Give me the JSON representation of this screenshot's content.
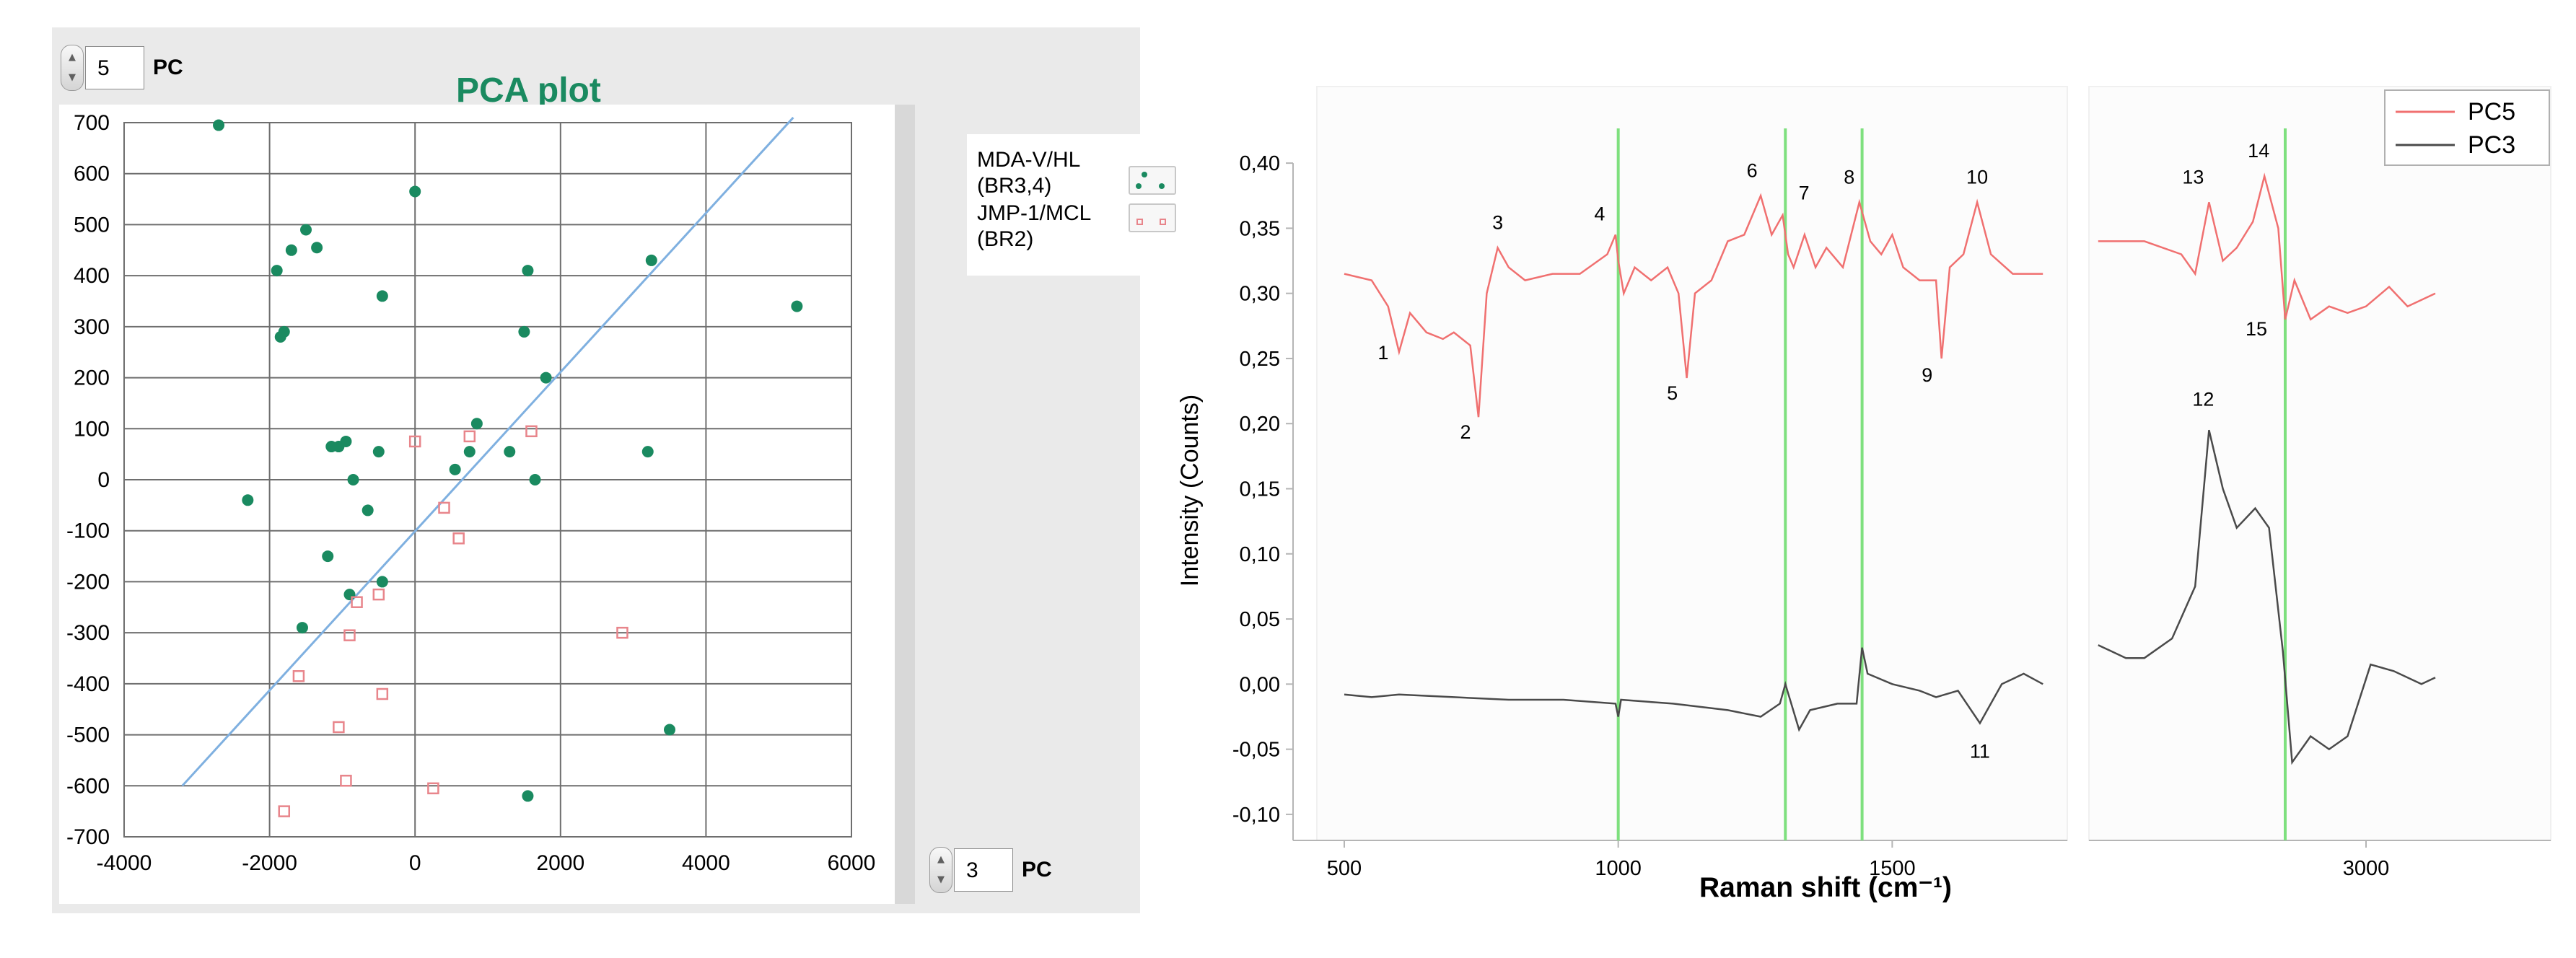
{
  "left_panel": {
    "pc_y_spinner": {
      "value": "5",
      "unit": "PC"
    },
    "pc_x_spinner": {
      "value": "3",
      "unit": "PC"
    },
    "legend": [
      {
        "label_line1": "MDA-V/HL",
        "label_line2": "(BR3,4)"
      },
      {
        "label_line1": "JMP-1/MCL",
        "label_line2": "(BR2)"
      }
    ]
  },
  "colors": {
    "series1": "#1a8a60",
    "series2": "#e8858b",
    "regression": "#7fb0e0",
    "pc5": "#f07070",
    "pc3": "#4a4a4a",
    "markers": "#7ee07e"
  },
  "chart_data": [
    {
      "type": "scatter",
      "title": "PCA plot",
      "xlim": [
        -4000,
        6000
      ],
      "ylim": [
        -700,
        700
      ],
      "xticks": [
        "-4000",
        "-2000",
        "0",
        "2000",
        "4000",
        "6000"
      ],
      "yticks": [
        "700",
        "600",
        "500",
        "400",
        "300",
        "200",
        "100",
        "0",
        "-100",
        "-200",
        "-300",
        "-400",
        "-500",
        "-600",
        "-700"
      ],
      "grid": true,
      "legend_position": "right",
      "series": [
        {
          "name": "MDA-V/HL (BR3,4)",
          "marker": "filled-circle",
          "points": [
            [
              -2700,
              695
            ],
            [
              -1900,
              410
            ],
            [
              -1850,
              280
            ],
            [
              -1800,
              290
            ],
            [
              -1700,
              450
            ],
            [
              -1500,
              490
            ],
            [
              -1350,
              455
            ],
            [
              -450,
              360
            ],
            [
              0,
              565
            ],
            [
              1550,
              410
            ],
            [
              3250,
              430
            ],
            [
              5250,
              340
            ],
            [
              1500,
              290
            ],
            [
              1800,
              200
            ],
            [
              -2300,
              -40
            ],
            [
              -1150,
              65
            ],
            [
              -1050,
              65
            ],
            [
              -950,
              75
            ],
            [
              -850,
              0
            ],
            [
              -650,
              -60
            ],
            [
              -500,
              55
            ],
            [
              550,
              20
            ],
            [
              750,
              55
            ],
            [
              850,
              110
            ],
            [
              1300,
              55
            ],
            [
              1650,
              0
            ],
            [
              3200,
              55
            ],
            [
              -1200,
              -150
            ],
            [
              -900,
              -225
            ],
            [
              -450,
              -200
            ],
            [
              -1550,
              -290
            ],
            [
              3500,
              -490
            ],
            [
              1550,
              -620
            ]
          ]
        },
        {
          "name": "JMP-1/MCL (BR2)",
          "marker": "hollow-square",
          "points": [
            [
              0,
              75
            ],
            [
              750,
              85
            ],
            [
              1600,
              95
            ],
            [
              400,
              -55
            ],
            [
              600,
              -115
            ],
            [
              -500,
              -225
            ],
            [
              -800,
              -240
            ],
            [
              -900,
              -305
            ],
            [
              2850,
              -300
            ],
            [
              -1600,
              -385
            ],
            [
              -450,
              -420
            ],
            [
              -1050,
              -485
            ],
            [
              -950,
              -590
            ],
            [
              250,
              -605
            ],
            [
              -1800,
              -650
            ]
          ]
        }
      ],
      "regression_line": {
        "x": [
          -3200,
          5200
        ],
        "y": [
          -600,
          710
        ]
      }
    },
    {
      "type": "line",
      "xlabel": "Raman shift (cm⁻¹)",
      "ylabel": "Intensity (Counts)",
      "ylim": [
        -0.12,
        0.42
      ],
      "yticks": [
        "0,40",
        "0,35",
        "0,30",
        "0,25",
        "0,20",
        "0,15",
        "0,10",
        "0,05",
        "0,00",
        "-0,05",
        "-0,10"
      ],
      "left_xlim": [
        450,
        1780
      ],
      "left_xticks": [
        "500",
        "1000",
        "1500"
      ],
      "right_xlim": [
        2400,
        3400
      ],
      "right_xticks": [
        "3000"
      ],
      "legend_position": "top-right",
      "vertical_markers": [
        1000,
        1305,
        1445,
        2825
      ],
      "series": [
        {
          "name": "PC5",
          "points": [
            [
              500,
              0.315
            ],
            [
              550,
              0.31
            ],
            [
              580,
              0.29
            ],
            [
              600,
              0.255
            ],
            [
              620,
              0.285
            ],
            [
              650,
              0.27
            ],
            [
              680,
              0.265
            ],
            [
              700,
              0.27
            ],
            [
              730,
              0.26
            ],
            [
              745,
              0.205
            ],
            [
              760,
              0.3
            ],
            [
              780,
              0.335
            ],
            [
              800,
              0.32
            ],
            [
              830,
              0.31
            ],
            [
              880,
              0.315
            ],
            [
              930,
              0.315
            ],
            [
              980,
              0.33
            ],
            [
              995,
              0.345
            ],
            [
              1000,
              0.325
            ],
            [
              1010,
              0.3
            ],
            [
              1030,
              0.32
            ],
            [
              1060,
              0.31
            ],
            [
              1090,
              0.32
            ],
            [
              1110,
              0.3
            ],
            [
              1125,
              0.235
            ],
            [
              1140,
              0.3
            ],
            [
              1170,
              0.31
            ],
            [
              1200,
              0.34
            ],
            [
              1230,
              0.345
            ],
            [
              1260,
              0.375
            ],
            [
              1280,
              0.345
            ],
            [
              1300,
              0.36
            ],
            [
              1310,
              0.33
            ],
            [
              1320,
              0.32
            ],
            [
              1340,
              0.345
            ],
            [
              1360,
              0.32
            ],
            [
              1380,
              0.335
            ],
            [
              1410,
              0.32
            ],
            [
              1440,
              0.37
            ],
            [
              1460,
              0.34
            ],
            [
              1480,
              0.33
            ],
            [
              1500,
              0.345
            ],
            [
              1520,
              0.32
            ],
            [
              1550,
              0.31
            ],
            [
              1580,
              0.31
            ],
            [
              1590,
              0.25
            ],
            [
              1605,
              0.32
            ],
            [
              1630,
              0.33
            ],
            [
              1655,
              0.37
            ],
            [
              1680,
              0.33
            ],
            [
              1720,
              0.315
            ],
            [
              1775,
              0.315
            ],
            [
              2420,
              0.34
            ],
            [
              2520,
              0.34
            ],
            [
              2600,
              0.33
            ],
            [
              2630,
              0.315
            ],
            [
              2660,
              0.37
            ],
            [
              2690,
              0.325
            ],
            [
              2720,
              0.335
            ],
            [
              2755,
              0.355
            ],
            [
              2780,
              0.39
            ],
            [
              2810,
              0.35
            ],
            [
              2825,
              0.28
            ],
            [
              2845,
              0.31
            ],
            [
              2880,
              0.28
            ],
            [
              2920,
              0.29
            ],
            [
              2960,
              0.285
            ],
            [
              3000,
              0.29
            ],
            [
              3050,
              0.305
            ],
            [
              3090,
              0.29
            ],
            [
              3120,
              0.295
            ],
            [
              3150,
              0.3
            ]
          ]
        },
        {
          "name": "PC3",
          "points": [
            [
              500,
              -0.008
            ],
            [
              550,
              -0.01
            ],
            [
              600,
              -0.008
            ],
            [
              700,
              -0.01
            ],
            [
              800,
              -0.012
            ],
            [
              900,
              -0.012
            ],
            [
              995,
              -0.015
            ],
            [
              1000,
              -0.025
            ],
            [
              1005,
              -0.012
            ],
            [
              1100,
              -0.015
            ],
            [
              1200,
              -0.02
            ],
            [
              1260,
              -0.025
            ],
            [
              1295,
              -0.015
            ],
            [
              1305,
              0.0
            ],
            [
              1330,
              -0.035
            ],
            [
              1350,
              -0.02
            ],
            [
              1400,
              -0.015
            ],
            [
              1435,
              -0.015
            ],
            [
              1445,
              0.028
            ],
            [
              1455,
              0.008
            ],
            [
              1500,
              0.0
            ],
            [
              1550,
              -0.005
            ],
            [
              1580,
              -0.01
            ],
            [
              1620,
              -0.005
            ],
            [
              1660,
              -0.03
            ],
            [
              1700,
              0.0
            ],
            [
              1740,
              0.008
            ],
            [
              1775,
              0.0
            ],
            [
              2420,
              0.03
            ],
            [
              2480,
              0.02
            ],
            [
              2520,
              0.02
            ],
            [
              2580,
              0.035
            ],
            [
              2630,
              0.075
            ],
            [
              2660,
              0.195
            ],
            [
              2690,
              0.15
            ],
            [
              2720,
              0.12
            ],
            [
              2760,
              0.135
            ],
            [
              2790,
              0.12
            ],
            [
              2820,
              0.025
            ],
            [
              2840,
              -0.06
            ],
            [
              2880,
              -0.04
            ],
            [
              2920,
              -0.05
            ],
            [
              2960,
              -0.04
            ],
            [
              3010,
              0.015
            ],
            [
              3060,
              0.01
            ],
            [
              3120,
              0.0
            ],
            [
              3150,
              0.005
            ]
          ]
        }
      ],
      "annotations": [
        {
          "label": "1",
          "x": 600,
          "y": 0.255
        },
        {
          "label": "2",
          "x": 745,
          "y": 0.205
        },
        {
          "label": "3",
          "x": 780,
          "y": 0.335
        },
        {
          "label": "4",
          "x": 995,
          "y": 0.345
        },
        {
          "label": "5",
          "x": 1125,
          "y": 0.235
        },
        {
          "label": "6",
          "x": 1260,
          "y": 0.375
        },
        {
          "label": "7",
          "x": 1310,
          "y": 0.36
        },
        {
          "label": "8",
          "x": 1440,
          "y": 0.37
        },
        {
          "label": "9",
          "x": 1590,
          "y": 0.25
        },
        {
          "label": "10",
          "x": 1655,
          "y": 0.37
        },
        {
          "label": "11",
          "x": 1660,
          "y": -0.03
        },
        {
          "label": "12",
          "x": 2660,
          "y": 0.195
        },
        {
          "label": "13",
          "x": 2660,
          "y": 0.37
        },
        {
          "label": "14",
          "x": 2780,
          "y": 0.39
        },
        {
          "label": "15",
          "x": 2825,
          "y": 0.28
        }
      ]
    }
  ]
}
